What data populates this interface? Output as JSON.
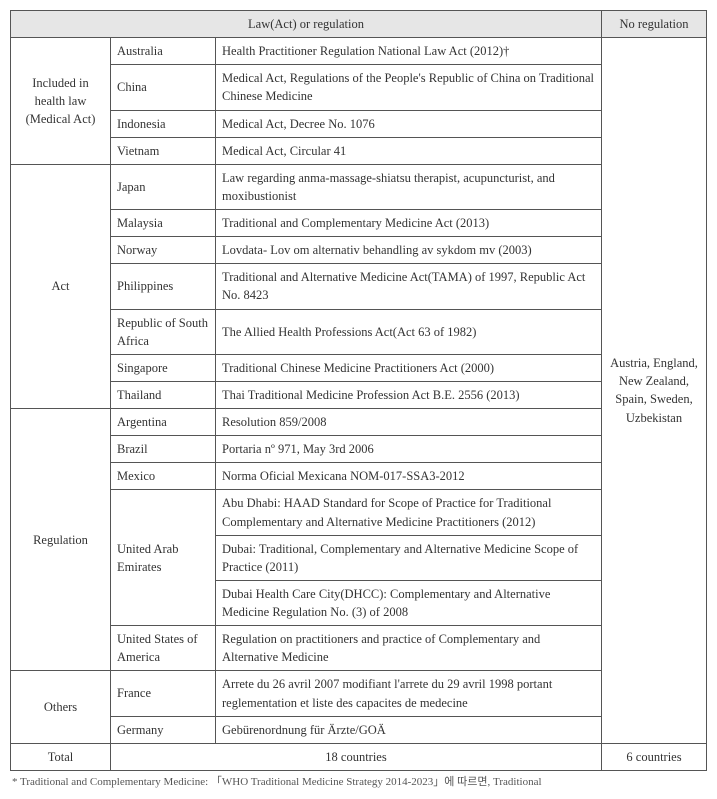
{
  "header": {
    "law_col": "Law(Act) or regulation",
    "noreg_col": "No regulation"
  },
  "groups": [
    {
      "label": "Included in health law (Medical Act)",
      "rows": [
        {
          "country": "Australia",
          "desc": "Health Practitioner Regulation National Law Act (2012)†"
        },
        {
          "country": "China",
          "desc": "Medical Act, Regulations of the People's Republic of China on Traditional Chinese Medicine"
        },
        {
          "country": "Indonesia",
          "desc": "Medical Act, Decree No. 1076"
        },
        {
          "country": "Vietnam",
          "desc": "Medical Act, Circular 41"
        }
      ]
    },
    {
      "label": "Act",
      "rows": [
        {
          "country": "Japan",
          "desc": "Law regarding anma-massage-shiatsu therapist, acupuncturist, and moxibustionist"
        },
        {
          "country": "Malaysia",
          "desc": "Traditional and Complementary Medicine Act (2013)"
        },
        {
          "country": "Norway",
          "desc": "Lovdata- Lov om alternativ behandling av sykdom mv (2003)"
        },
        {
          "country": "Philippines",
          "desc": "Traditional and Alternative Medicine Act(TAMA) of 1997, Republic Act No. 8423"
        },
        {
          "country": "Republic of South Africa",
          "desc": "The Allied Health Professions Act(Act 63 of 1982)"
        },
        {
          "country": "Singapore",
          "desc": "Traditional Chinese Medicine Practitioners Act (2000)"
        },
        {
          "country": "Thailand",
          "desc": "Thai Traditional Medicine Profession Act B.E. 2556 (2013)"
        }
      ]
    },
    {
      "label": "Regulation",
      "rows": [
        {
          "country": "Argentina",
          "desc": "Resolution 859/2008"
        },
        {
          "country": "Brazil",
          "desc": "Portaria nº 971, May 3rd 2006"
        },
        {
          "country": "Mexico",
          "desc": "Norma Oficial Mexicana NOM-017-SSA3-2012"
        },
        {
          "country": "United Arab Emirates",
          "uae": true,
          "subrows": [
            "Abu Dhabi: HAAD Standard for Scope of Practice for Traditional Complementary and Alternative Medicine Practitioners (2012)",
            "Dubai: Traditional, Complementary and Alternative Medicine Scope of Practice (2011)",
            "Dubai Health Care City(DHCC): Complementary and Alternative Medicine Regulation No. (3) of 2008"
          ]
        },
        {
          "country": "United States of America",
          "desc": "Regulation on practitioners and practice of Complementary and Alternative Medicine"
        }
      ]
    },
    {
      "label": "Others",
      "rows": [
        {
          "country": "France",
          "desc": "Arrete du 26 avril 2007 modifiant l'arrete du 29 avril 1998 portant reglementation et liste des capacites de medecine"
        },
        {
          "country": "Germany",
          "desc": "Gebürenordnung für Ärzte/GOÄ"
        }
      ]
    }
  ],
  "noreg_list": "Austria, England, New Zealand, Spain, Sweden, Uzbekistan",
  "totals": {
    "label": "Total",
    "law_count": "18 countries",
    "noreg_count": "6 countries"
  },
  "footnote": "* Traditional and Complementary Medicine: 「WHO Traditional Medicine Strategy 2014-2023」에 따르면, Traditional"
}
